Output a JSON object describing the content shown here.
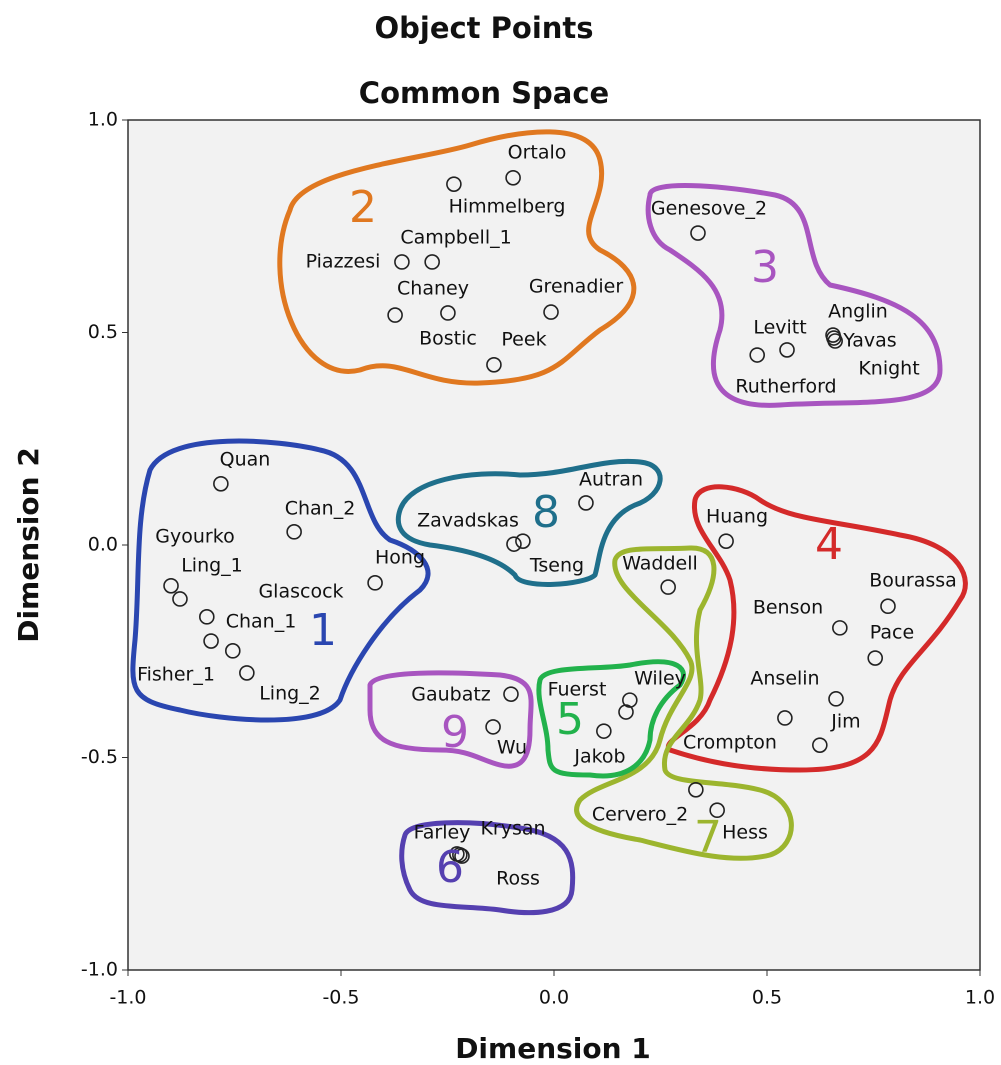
{
  "chart_data": {
    "type": "scatter",
    "title": "Object Points",
    "subtitle": "Common Space",
    "x_label": "Dimension 1",
    "y_label": "Dimension 2",
    "xlim": [
      -1.0,
      1.0
    ],
    "ylim": [
      -1.0,
      1.0
    ],
    "xticks": [
      {
        "value": -1.0,
        "label": "-1.0"
      },
      {
        "value": -0.5,
        "label": "-0.5"
      },
      {
        "value": 0.0,
        "label": "0.0"
      },
      {
        "value": 0.5,
        "label": "0.5"
      },
      {
        "value": 1.0,
        "label": "1.0"
      }
    ],
    "yticks": [
      {
        "value": -1.0,
        "label": "-1.0"
      },
      {
        "value": -0.5,
        "label": "-0.5"
      },
      {
        "value": 0.0,
        "label": "0.0"
      },
      {
        "value": 0.5,
        "label": "0.5"
      },
      {
        "value": 1.0,
        "label": "1.0"
      }
    ],
    "labels": [
      "Ortalo",
      "Himmelberg",
      "Campbell_1",
      "Piazzesi",
      "Chaney",
      "Grenadier",
      "Bostic",
      "Peek",
      "Genesove_2",
      "Anglin",
      "Yavas",
      "Knight",
      "Levitt",
      "Rutherford",
      "Quan",
      "Chan_2",
      "Hong",
      "Gyourko",
      "Ling_1",
      "Glascock",
      "Chan_1",
      "Fisher_1",
      "Ling_2",
      "Autran",
      "Zavadskas",
      "Tseng",
      "Waddell",
      "Huang",
      "Bourassa",
      "Benson",
      "Pace",
      "Anselin",
      "Jim",
      "Crompton",
      "Gaubatz",
      "Wu",
      "Fuerst",
      "Wiley",
      "Jakob",
      "Cervero_2",
      "Hess",
      "Farley",
      "Krysan",
      "Ross"
    ],
    "x": [
      -0.096,
      -0.235,
      -0.286,
      -0.357,
      -0.249,
      -0.007,
      -0.373,
      -0.141,
      0.338,
      0.655,
      0.66,
      0.657,
      0.547,
      0.477,
      -0.782,
      -0.61,
      -0.42,
      -0.899,
      -0.878,
      -0.815,
      -0.805,
      -0.754,
      -0.721,
      0.075,
      -0.094,
      -0.073,
      0.268,
      0.404,
      0.784,
      0.671,
      0.754,
      0.662,
      0.624,
      0.542,
      -0.101,
      -0.143,
      0.169,
      0.178,
      0.117,
      0.333,
      0.383,
      -0.228,
      -0.221,
      -0.216
    ],
    "y": [
      0.864,
      0.849,
      0.666,
      0.666,
      0.546,
      0.548,
      0.541,
      0.424,
      0.734,
      0.494,
      0.48,
      0.487,
      0.459,
      0.447,
      0.144,
      0.031,
      -0.089,
      -0.096,
      -0.127,
      -0.169,
      -0.226,
      -0.249,
      -0.301,
      0.099,
      0.002,
      0.009,
      -0.099,
      0.009,
      -0.144,
      -0.195,
      -0.266,
      -0.362,
      -0.471,
      -0.407,
      -0.351,
      -0.428,
      -0.393,
      -0.365,
      -0.438,
      -0.576,
      -0.624,
      -0.727,
      -0.729,
      -0.732
    ],
    "point_color": "#222222",
    "annotations": [
      {
        "text": "2",
        "color": "#e07820"
      },
      {
        "text": "3",
        "color": "#a855c0"
      },
      {
        "text": "1",
        "color": "#2a46b0"
      },
      {
        "text": "8",
        "color": "#1f6f8b"
      },
      {
        "text": "4",
        "color": "#d42a2a"
      },
      {
        "text": "9",
        "color": "#a855c0"
      },
      {
        "text": "5",
        "color": "#22b24c"
      },
      {
        "text": "7",
        "color": "#9cb52e"
      },
      {
        "text": "6",
        "color": "#5540b0"
      }
    ]
  }
}
